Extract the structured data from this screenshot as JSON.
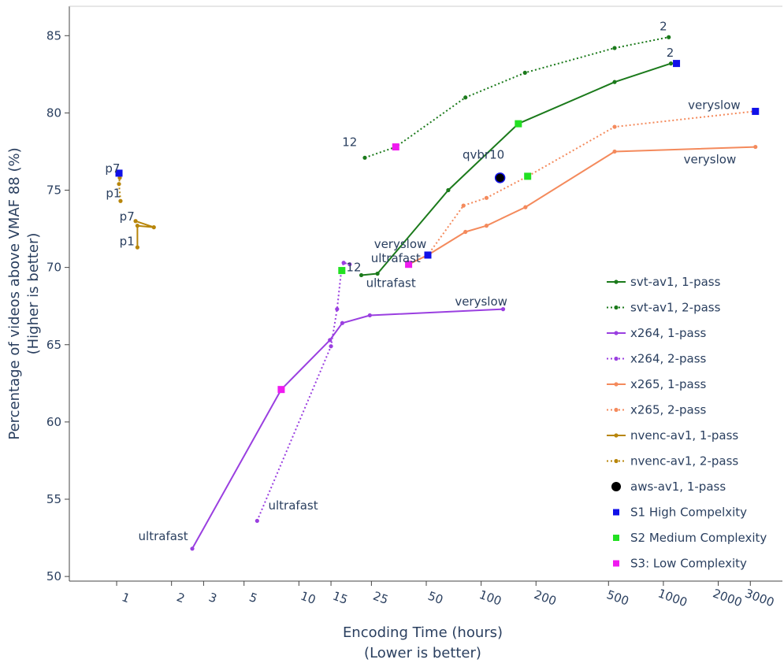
{
  "chart_data": {
    "type": "line",
    "title": "",
    "xlabel": [
      "Encoding Time  (hours)",
      "(Lower is better)"
    ],
    "ylabel": [
      "Percentage of videos above VMAF 88 (%)",
      "(Higher is better)"
    ],
    "x_scale": "log",
    "xlim": [
      0.55,
      4500
    ],
    "ylim": [
      49.7,
      86.9
    ],
    "x_ticks": [
      1,
      2,
      3,
      5,
      10,
      15,
      25,
      50,
      100,
      200,
      500,
      1000,
      2000,
      3000
    ],
    "x_tick_labels": [
      "1",
      "2",
      "3",
      "5",
      "10",
      "15",
      "25",
      "50",
      "100",
      "200",
      "500",
      "1000",
      "2000",
      "3000"
    ],
    "y_ticks": [
      50,
      55,
      60,
      65,
      70,
      75,
      80,
      85
    ],
    "y_tick_labels": [
      "50",
      "55",
      "60",
      "65",
      "70",
      "75",
      "80",
      "85"
    ],
    "grid": false,
    "legend_position": "right",
    "series": [
      {
        "name": "svt-av1, 1-pass",
        "color": "#1b7a1b",
        "dash": "solid",
        "marker": "dot",
        "x": [
          22,
          27,
          66,
          160,
          540,
          1100
        ],
        "y": [
          69.5,
          69.6,
          75.0,
          79.3,
          82.0,
          83.2
        ]
      },
      {
        "name": "svt-av1, 2-pass",
        "color": "#1b7a1b",
        "dash": "dot",
        "marker": "dot",
        "x": [
          23,
          34,
          82,
          174,
          540,
          1070
        ],
        "y": [
          77.1,
          77.8,
          81.0,
          82.6,
          84.2,
          84.9
        ]
      },
      {
        "name": "x264, 1-pass",
        "color": "#9a3fe0",
        "dash": "solid",
        "marker": "dot",
        "x": [
          2.6,
          8.0,
          14.8,
          17.3,
          24.5,
          132
        ],
        "y": [
          51.8,
          62.1,
          65.3,
          66.4,
          66.9,
          67.3
        ]
      },
      {
        "name": "x264, 2-pass",
        "color": "#9a3fe0",
        "dash": "dot",
        "marker": "dot",
        "x": [
          5.9,
          15.0,
          16.2,
          17.1,
          17.6,
          19.0
        ],
        "y": [
          53.6,
          64.9,
          67.3,
          69.8,
          70.3,
          70.2
        ]
      },
      {
        "name": "x265, 1-pass",
        "color": "#f48a5c",
        "dash": "solid",
        "marker": "dot",
        "x": [
          40,
          51,
          82,
          107,
          175,
          540,
          3200
        ],
        "y": [
          70.2,
          70.8,
          72.3,
          72.7,
          73.9,
          77.5,
          77.8
        ]
      },
      {
        "name": "x265, 2-pass",
        "color": "#f48a5c",
        "dash": "dot",
        "marker": "dot",
        "x": [
          40,
          51,
          80,
          107,
          180,
          540,
          3150
        ],
        "y": [
          70.2,
          70.8,
          74.0,
          74.5,
          75.9,
          79.1,
          80.1
        ]
      },
      {
        "name": "nvenc-av1, 1-pass",
        "color": "#b8860b",
        "dash": "solid",
        "marker": "dot",
        "x": [
          1.3,
          1.3,
          1.6,
          1.27
        ],
        "y": [
          71.3,
          72.7,
          72.6,
          73.0
        ]
      },
      {
        "name": "nvenc-av1, 2-pass",
        "color": "#b8860b",
        "dash": "dot",
        "marker": "dot",
        "x": [
          1.05,
          1.03,
          1.04
        ],
        "y": [
          74.3,
          75.4,
          75.8
        ]
      },
      {
        "name": "aws-av1, 1-pass",
        "color": "#000000",
        "dash": "none",
        "marker": "circle",
        "x": [
          127
        ],
        "y": [
          75.8
        ]
      },
      {
        "name": "S1 High Compelxity",
        "color": "#1010e8",
        "dash": "none",
        "marker": "square",
        "x": [
          1.03,
          51,
          1180,
          3200
        ],
        "y": [
          76.1,
          70.8,
          83.2,
          80.1
        ]
      },
      {
        "name": "S2 Medium Complexity",
        "color": "#22e022",
        "dash": "none",
        "marker": "square",
        "x": [
          17.2,
          160,
          180
        ],
        "y": [
          69.8,
          79.3,
          75.9
        ]
      },
      {
        "name": "S3: Low Complexity",
        "color": "#f01af0",
        "dash": "none",
        "marker": "square",
        "x": [
          8.0,
          34,
          40
        ],
        "y": [
          62.1,
          77.8,
          70.2
        ]
      }
    ],
    "annotations": [
      {
        "text": "2",
        "x": 1000,
        "y": 85.6
      },
      {
        "text": "2",
        "x": 1090,
        "y": 83.9
      },
      {
        "text": "veryslow",
        "x": 1900,
        "y": 80.5
      },
      {
        "text": "veryslow",
        "x": 1800,
        "y": 77.0
      },
      {
        "text": "12",
        "x": 19,
        "y": 78.1
      },
      {
        "text": "qvbr10",
        "x": 103,
        "y": 77.3
      },
      {
        "text": "veryslow",
        "x": 36,
        "y": 71.5
      },
      {
        "text": "ultrafast",
        "x": 34,
        "y": 70.6
      },
      {
        "text": "12",
        "x": 20,
        "y": 70.0
      },
      {
        "text": "ultrafast",
        "x": 32,
        "y": 69.0
      },
      {
        "text": "veryslow",
        "x": 100,
        "y": 67.8
      },
      {
        "text": "ultrafast",
        "x": 9.3,
        "y": 54.6
      },
      {
        "text": "ultrafast",
        "x": 1.8,
        "y": 52.6
      },
      {
        "text": "p7",
        "x": 0.95,
        "y": 76.4
      },
      {
        "text": "p1",
        "x": 0.96,
        "y": 74.8
      },
      {
        "text": "p7",
        "x": 1.14,
        "y": 73.3
      },
      {
        "text": "p1",
        "x": 1.14,
        "y": 71.7
      }
    ]
  }
}
